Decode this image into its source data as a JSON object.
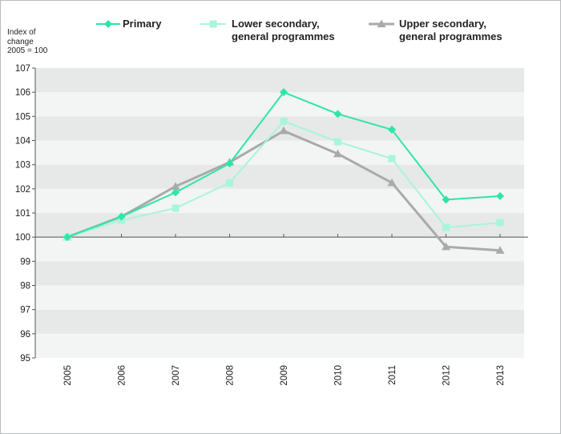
{
  "chart_data": {
    "type": "line",
    "title": "",
    "ylabel_lines": [
      "Index of",
      "change",
      "2005 = 100"
    ],
    "xlabel": "",
    "categories": [
      "2005",
      "2006",
      "2007",
      "2008",
      "2009",
      "2010",
      "2011",
      "2012",
      "2013"
    ],
    "ylim": [
      95,
      107
    ],
    "yticks": [
      "95",
      "96",
      "97",
      "98",
      "99",
      "100",
      "101",
      "102",
      "103",
      "104",
      "105",
      "106",
      "107"
    ],
    "baseline": 100,
    "legend_position": "top",
    "series": [
      {
        "name": "Primary",
        "legend_lines": [
          "Primary"
        ],
        "color": "#2ee6a6",
        "marker": "diamond",
        "values": [
          100,
          100.85,
          101.85,
          103.05,
          106.0,
          105.1,
          104.45,
          101.55,
          101.7
        ]
      },
      {
        "name": "Lower secondary, general programmes",
        "legend_lines": [
          "Lower secondary,",
          "general programmes"
        ],
        "color": "#a7f5dd",
        "marker": "square",
        "values": [
          100,
          100.7,
          101.2,
          102.25,
          104.8,
          103.95,
          103.25,
          100.4,
          100.6
        ]
      },
      {
        "name": "Upper secondary, general programmes",
        "legend_lines": [
          "Upper secondary,",
          "general programmes"
        ],
        "color": "#a9aaab",
        "marker": "triangle",
        "values": [
          100,
          100.85,
          102.1,
          103.1,
          104.4,
          103.45,
          102.25,
          99.6,
          99.45
        ]
      }
    ]
  }
}
